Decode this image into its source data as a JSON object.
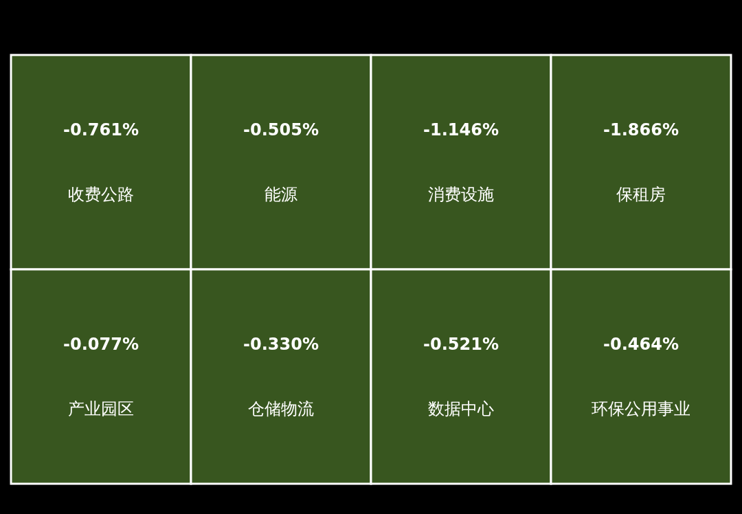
{
  "chart_data": {
    "type": "other",
    "categories": [
      "收费公路",
      "产业园区",
      "能源",
      "仓储物流",
      "消费设施",
      "保租房",
      "数据中心",
      "环保公用事业"
    ],
    "values": [
      -0.761,
      -0.077,
      -0.505,
      -0.33,
      -1.146,
      -1.866,
      -0.521,
      -0.464
    ],
    "value_labels": [
      "-0.761%",
      "-0.077%",
      "-0.505%",
      "-0.330%",
      "-1.146%",
      "-1.866%",
      "-0.521%",
      "-0.464%"
    ],
    "colors": [
      "#38561f",
      "#38561f",
      "#38561f",
      "#38561f",
      "#38561f",
      "#38561f",
      "#38561f",
      "#38561f"
    ]
  }
}
